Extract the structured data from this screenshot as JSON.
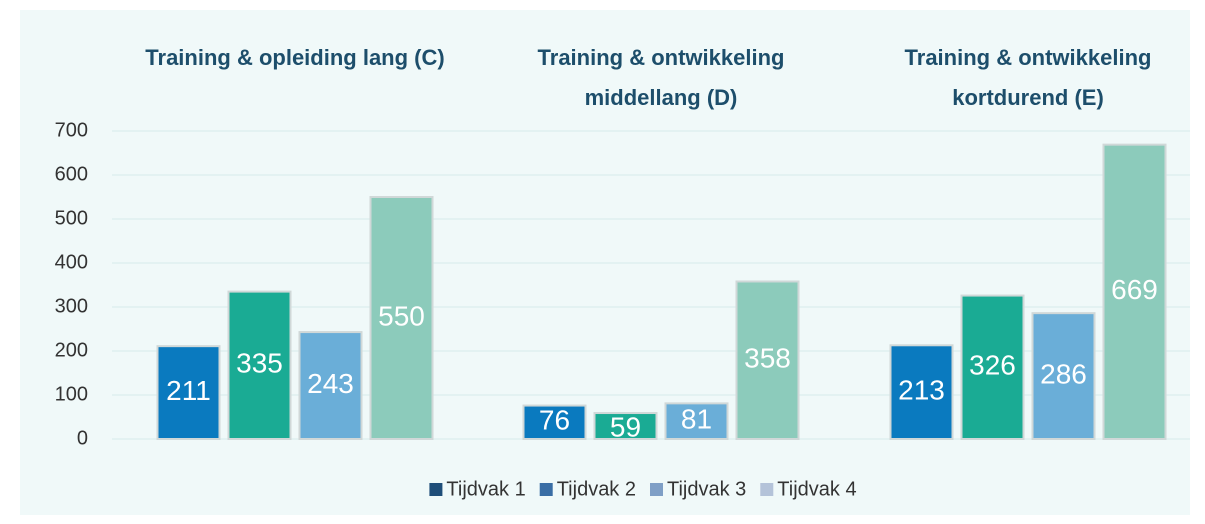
{
  "chart_data": {
    "type": "bar",
    "categories": [
      "Training & opleiding lang (C)",
      "Training & ontwikkeling middellang (D)",
      "Training & ontwikkeling kortdurend (E)"
    ],
    "series": [
      {
        "name": "Tijdvak 1",
        "color": "#0a7abf",
        "legend_color": "#1f4e79",
        "values": [
          211,
          76,
          213
        ]
      },
      {
        "name": "Tijdvak 2",
        "color": "#1aab94",
        "legend_color": "#3a6ea5",
        "values": [
          335,
          59,
          326
        ]
      },
      {
        "name": "Tijdvak 3",
        "color": "#6aaed8",
        "legend_color": "#7f9fc6",
        "values": [
          243,
          81,
          286
        ]
      },
      {
        "name": "Tijdvak 4",
        "color": "#8ccbbb",
        "legend_color": "#b4c3d9",
        "values": [
          550,
          358,
          669
        ]
      }
    ],
    "ylim": [
      0,
      700
    ],
    "yticks": [
      0,
      100,
      200,
      300,
      400,
      500,
      600,
      700
    ],
    "grid": true,
    "legend": "bottom"
  }
}
